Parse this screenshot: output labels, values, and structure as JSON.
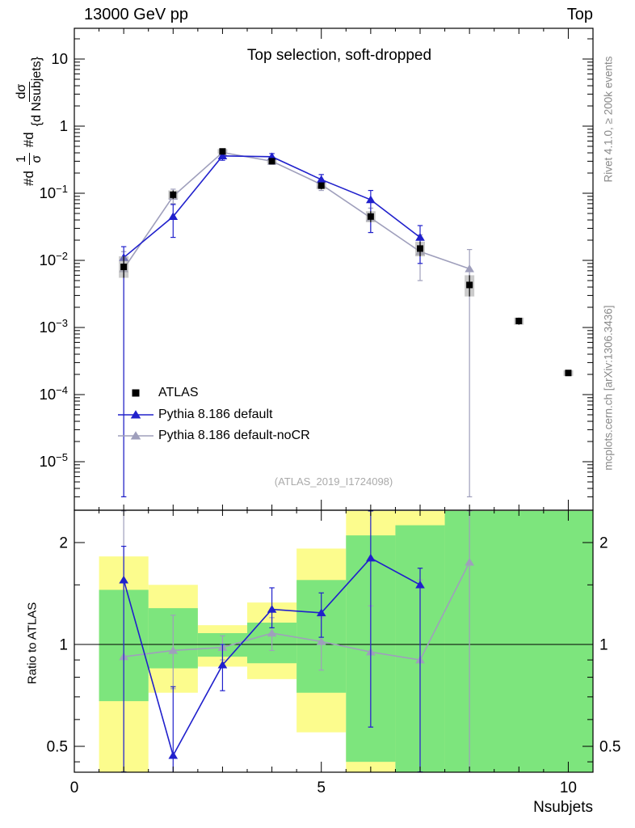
{
  "header": {
    "left": "13000 GeV pp",
    "right": "Top"
  },
  "panel_title": "Top selection, soft-dropped",
  "watermark": "(ATLAS_2019_I1724098)",
  "right_margin": {
    "top_text": "Rivet 4.1.0, ≥ 200k events",
    "bottom_text": "mcplots.cern.ch [arXiv:1306.3436]"
  },
  "ylabel": {
    "prefix1": "#d",
    "frac1_num": "1",
    "frac1_den": "σ",
    "prefix2": "#d",
    "frac2_num": "dσ",
    "frac2_den": "{d Nsubjets}"
  },
  "ratio_ylabel": "Ratio to ATLAS",
  "xlabel": "Nsubjets",
  "legend": {
    "items": [
      {
        "label": "ATLAS",
        "marker": "square",
        "color": "#000000"
      },
      {
        "label": "Pythia 8.186 default",
        "marker": "triangle",
        "color": "#2020cc"
      },
      {
        "label": "Pythia 8.186 default-noCR",
        "marker": "triangle",
        "color": "#9f9fbc"
      }
    ]
  },
  "colors": {
    "blue": "#2020cc",
    "gray": "#9f9fbc",
    "band_green": "#7de57d",
    "band_yellow": "#fcfc8d",
    "atlas_box": "#a9a9a9",
    "axis": "#000000",
    "watermark": "#aaaaaa",
    "margin_text": "#8a8a8a"
  },
  "chart_data": {
    "type": "line",
    "title": "Top selection, soft-dropped",
    "xlabel": "Nsubjets",
    "xlim": [
      0,
      10.5
    ],
    "xticks": [
      {
        "v": 0,
        "label": "0"
      },
      {
        "v": 5,
        "label": "5"
      },
      {
        "v": 10,
        "label": "10"
      }
    ],
    "top_panel": {
      "ylog": true,
      "ylim": [
        2.4e-06,
        28
      ],
      "yticks": [
        {
          "v": 10,
          "label": "10"
        },
        {
          "v": 1,
          "label": "1"
        },
        {
          "v": 0.1,
          "label": "10",
          "exp": "−1"
        },
        {
          "v": 0.01,
          "label": "10",
          "exp": "−2"
        },
        {
          "v": 0.001,
          "label": "10",
          "exp": "−3"
        },
        {
          "v": 0.0001,
          "label": "10",
          "exp": "−4"
        },
        {
          "v": 1e-05,
          "label": "10",
          "exp": "−5"
        }
      ],
      "series": [
        {
          "name": "ATLAS",
          "marker": "square",
          "color": "#000000",
          "x": [
            1,
            2,
            3,
            4,
            5,
            6,
            7,
            8,
            9,
            10
          ],
          "y": [
            0.008,
            0.095,
            0.42,
            0.3,
            0.13,
            0.045,
            0.015,
            0.0043,
            0.00125,
            0.00021
          ],
          "err_lo": [
            0.0055,
            0.082,
            0.39,
            0.28,
            0.115,
            0.037,
            0.0115,
            0.0029,
            0.0011,
            0.00019
          ],
          "err_hi": [
            0.0115,
            0.11,
            0.455,
            0.32,
            0.145,
            0.054,
            0.019,
            0.006,
            0.0014,
            0.00023
          ]
        },
        {
          "name": "Pythia 8.186 default",
          "marker": "triangle",
          "color": "#2020cc",
          "x": [
            1,
            2,
            3,
            4,
            5,
            6,
            7
          ],
          "y": [
            0.011,
            0.045,
            0.36,
            0.35,
            0.16,
            0.08,
            0.022
          ],
          "err_lo": [
            3e-06,
            0.022,
            0.31,
            0.31,
            0.13,
            0.026,
            0.009
          ],
          "err_hi": [
            0.016,
            0.068,
            0.41,
            0.39,
            0.19,
            0.11,
            0.033
          ]
        },
        {
          "name": "Pythia 8.186 default-noCR",
          "marker": "triangle",
          "color": "#9f9fbc",
          "x": [
            1,
            2,
            3,
            4,
            5,
            6,
            7,
            8
          ],
          "y": [
            0.0075,
            0.09,
            0.405,
            0.3,
            0.135,
            0.043,
            0.0135,
            0.0075
          ],
          "err_lo": [
            3e-06,
            0.07,
            0.37,
            0.27,
            0.11,
            0.026,
            0.005,
            3e-06
          ],
          "err_hi": [
            0.0135,
            0.115,
            0.44,
            0.335,
            0.16,
            0.06,
            0.024,
            0.0145
          ]
        }
      ]
    },
    "ratio_panel": {
      "ylog": true,
      "ylim": [
        0.42,
        2.48
      ],
      "yticks": [
        {
          "v": 2,
          "label": "2"
        },
        {
          "v": 1,
          "label": "1"
        },
        {
          "v": 0.5,
          "label": "0.5"
        }
      ],
      "ref_line": 1,
      "bands": [
        {
          "x0": 0.5,
          "x1": 1.5,
          "yellow": [
            0.42,
            1.82
          ],
          "green": [
            0.68,
            1.45
          ]
        },
        {
          "x0": 1.5,
          "x1": 2.5,
          "yellow": [
            0.72,
            1.5
          ],
          "green": [
            0.85,
            1.28
          ]
        },
        {
          "x0": 2.5,
          "x1": 3.5,
          "yellow": [
            0.86,
            1.14
          ],
          "green": [
            0.92,
            1.08
          ]
        },
        {
          "x0": 3.5,
          "x1": 4.5,
          "yellow": [
            0.79,
            1.33
          ],
          "green": [
            0.88,
            1.16
          ]
        },
        {
          "x0": 4.5,
          "x1": 5.5,
          "yellow": [
            0.55,
            1.92
          ],
          "green": [
            0.72,
            1.55
          ]
        },
        {
          "x0": 5.5,
          "x1": 6.5,
          "yellow": [
            0.42,
            2.48
          ],
          "green": [
            0.45,
            2.1
          ]
        },
        {
          "x0": 6.5,
          "x1": 7.5,
          "yellow": [
            0.42,
            2.48
          ],
          "green": [
            0.42,
            2.25
          ]
        },
        {
          "x0": 7.5,
          "x1": 10.5,
          "yellow": [
            0.42,
            2.48
          ],
          "green": [
            0.42,
            2.48
          ]
        }
      ],
      "series": [
        {
          "name": "Pythia 8.186 default",
          "marker": "triangle",
          "color": "#2020cc",
          "x": [
            1,
            2,
            3,
            4,
            5,
            6,
            7
          ],
          "y": [
            1.55,
            0.47,
            0.87,
            1.27,
            1.24,
            1.8,
            1.5
          ],
          "err_lo": [
            0.42,
            0.29,
            0.73,
            1.12,
            1.05,
            0.57,
            0.42
          ],
          "err_hi": [
            1.95,
            0.75,
            1.0,
            1.47,
            1.42,
            2.48,
            1.68
          ]
        },
        {
          "name": "Pythia 8.186 default-noCR",
          "marker": "triangle",
          "color": "#9f9fbc",
          "x": [
            1,
            2,
            3,
            4,
            5,
            6,
            7,
            8
          ],
          "y": [
            0.92,
            0.96,
            0.98,
            1.08,
            1.02,
            0.95,
            0.9,
            1.75
          ],
          "err_lo": [
            0.42,
            0.74,
            0.9,
            0.96,
            0.84,
            0.57,
            0.42,
            0.42
          ],
          "err_hi": [
            2.48,
            1.22,
            1.06,
            1.2,
            1.2,
            1.3,
            1.55,
            2.48
          ]
        }
      ]
    }
  }
}
